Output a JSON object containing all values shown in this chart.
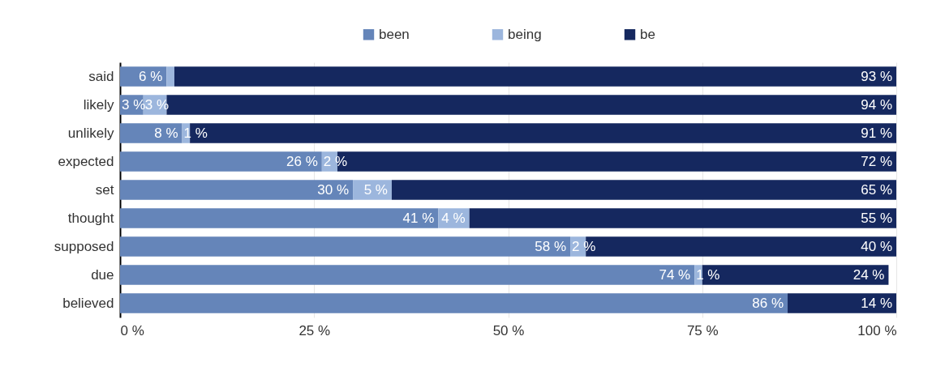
{
  "chart_data": {
    "type": "bar",
    "orientation": "horizontal",
    "stacked": true,
    "legend": "top",
    "grid": "x",
    "categories": [
      "said",
      "likely",
      "unlikely",
      "expected",
      "set",
      "thought",
      "supposed",
      "due",
      "believed"
    ],
    "series": [
      {
        "name": "been",
        "color": "#6585b9",
        "values": [
          6,
          3,
          8,
          26,
          30,
          41,
          58,
          74,
          86
        ],
        "value_labels": [
          "6 %",
          "3 %",
          "8 %",
          "26 %",
          "30 %",
          "41 %",
          "58 %",
          "74 %",
          "86 %"
        ]
      },
      {
        "name": "being",
        "color": "#9cb6dd",
        "values": [
          1,
          3,
          1,
          2,
          5,
          4,
          2,
          1,
          0
        ],
        "value_labels": [
          null,
          "3 %",
          "1 %",
          "2 %",
          "5 %",
          "4 %",
          "2 %",
          "1 %",
          null
        ]
      },
      {
        "name": "be",
        "color": "#15285f",
        "values": [
          93,
          94,
          91,
          72,
          65,
          55,
          40,
          24,
          14
        ],
        "value_labels": [
          "93 %",
          "94 %",
          "91 %",
          "72 %",
          "65 %",
          "55 %",
          "40 %",
          "24 %",
          "14 %"
        ]
      }
    ],
    "xlim": [
      0,
      100
    ],
    "xticks": [
      {
        "value": 0,
        "label": "0 %"
      },
      {
        "value": 25,
        "label": "25 %"
      },
      {
        "value": 50,
        "label": "50 %"
      },
      {
        "value": 75,
        "label": "75 %"
      },
      {
        "value": 100,
        "label": "100 %"
      }
    ]
  }
}
